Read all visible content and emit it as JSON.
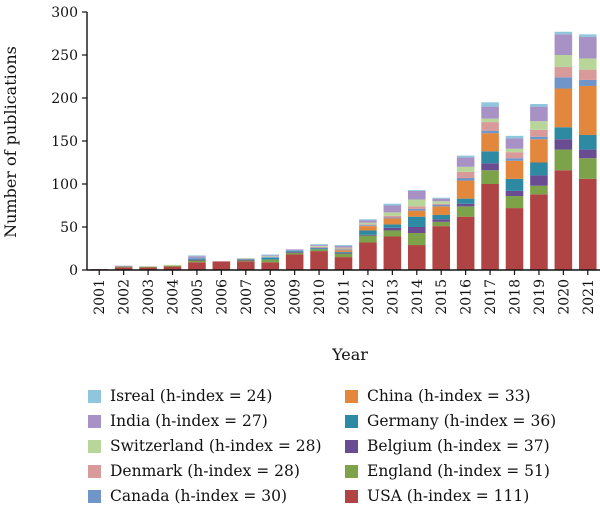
{
  "chart_data": {
    "type": "bar",
    "stacked": true,
    "xlabel": "Year",
    "ylabel": "Number of publications",
    "ylim": [
      0,
      300
    ],
    "yticks": [
      0,
      50,
      100,
      150,
      200,
      250,
      300
    ],
    "grid": false,
    "legend_position": "bottom",
    "categories": [
      "2001",
      "2002",
      "2003",
      "2004",
      "2005",
      "2006",
      "2007",
      "2008",
      "2009",
      "2010",
      "2011",
      "2012",
      "2013",
      "2014",
      "2015",
      "2016",
      "2017",
      "2018",
      "2019",
      "2020",
      "2021"
    ],
    "series": [
      {
        "name": "USA (h-index = 111)",
        "color": "#b04444",
        "values": [
          1,
          3,
          3,
          4,
          9,
          10,
          10,
          9,
          18,
          22,
          15,
          32,
          39,
          29,
          51,
          62,
          100,
          72,
          88,
          116,
          106
        ]
      },
      {
        "name": "England (h-index = 51)",
        "color": "#7ca34a",
        "values": [
          0,
          1,
          1,
          1,
          2,
          0,
          1,
          3,
          2,
          2,
          4,
          8,
          7,
          14,
          5,
          12,
          16,
          14,
          10,
          24,
          24
        ]
      },
      {
        "name": "Belgium (h-index = 37)",
        "color": "#6a4c93",
        "values": [
          0,
          0,
          0,
          0,
          1,
          0,
          1,
          0,
          1,
          0,
          1,
          1,
          3,
          7,
          3,
          3,
          8,
          6,
          12,
          12,
          10
        ]
      },
      {
        "name": "Germany (h-index = 36)",
        "color": "#2e8aa3",
        "values": [
          0,
          0,
          0,
          0,
          1,
          0,
          0,
          2,
          1,
          1,
          1,
          5,
          4,
          12,
          5,
          6,
          14,
          14,
          15,
          14,
          17
        ]
      },
      {
        "name": "China (h-index = 33)",
        "color": "#e2873c",
        "values": [
          0,
          0,
          0,
          0,
          0,
          0,
          0,
          0,
          0,
          0,
          2,
          5,
          7,
          7,
          10,
          21,
          21,
          21,
          27,
          45,
          57
        ]
      },
      {
        "name": "Canada (h-index = 30)",
        "color": "#6f95c9",
        "values": [
          0,
          0,
          0,
          0,
          1,
          0,
          1,
          1,
          1,
          1,
          1,
          1,
          1,
          2,
          2,
          3,
          3,
          3,
          3,
          13,
          7
        ]
      },
      {
        "name": "Denmark (h-index = 28)",
        "color": "#d99a9a",
        "values": [
          0,
          0,
          0,
          0,
          0,
          0,
          0,
          0,
          0,
          1,
          1,
          1,
          2,
          3,
          1,
          7,
          10,
          7,
          8,
          12,
          12
        ]
      },
      {
        "name": "Switzerland (h-index = 28)",
        "color": "#b9d69a",
        "values": [
          0,
          0,
          0,
          1,
          0,
          0,
          1,
          1,
          0,
          1,
          1,
          2,
          4,
          8,
          3,
          6,
          4,
          4,
          10,
          14,
          13
        ]
      },
      {
        "name": "India (h-index = 27)",
        "color": "#a791c5",
        "values": [
          0,
          1,
          0,
          0,
          2,
          0,
          0,
          1,
          1,
          1,
          2,
          3,
          8,
          10,
          3,
          11,
          14,
          12,
          17,
          24,
          25
        ]
      },
      {
        "name": "Isreal (h-index = 24)",
        "color": "#8fc6dd",
        "values": [
          0,
          0,
          0,
          0,
          1,
          0,
          0,
          1,
          0,
          1,
          1,
          1,
          2,
          1,
          1,
          2,
          5,
          3,
          3,
          3,
          3
        ]
      }
    ],
    "legend_columns": [
      [
        "Isreal (h-index = 24)",
        "India (h-index = 27)",
        "Switzerland (h-index = 28)",
        "Denmark (h-index = 28)",
        "Canada (h-index = 30)"
      ],
      [
        "China (h-index = 33)",
        "Germany (h-index = 36)",
        "Belgium (h-index = 37)",
        "England (h-index = 51)",
        "USA (h-index = 111)"
      ]
    ]
  }
}
